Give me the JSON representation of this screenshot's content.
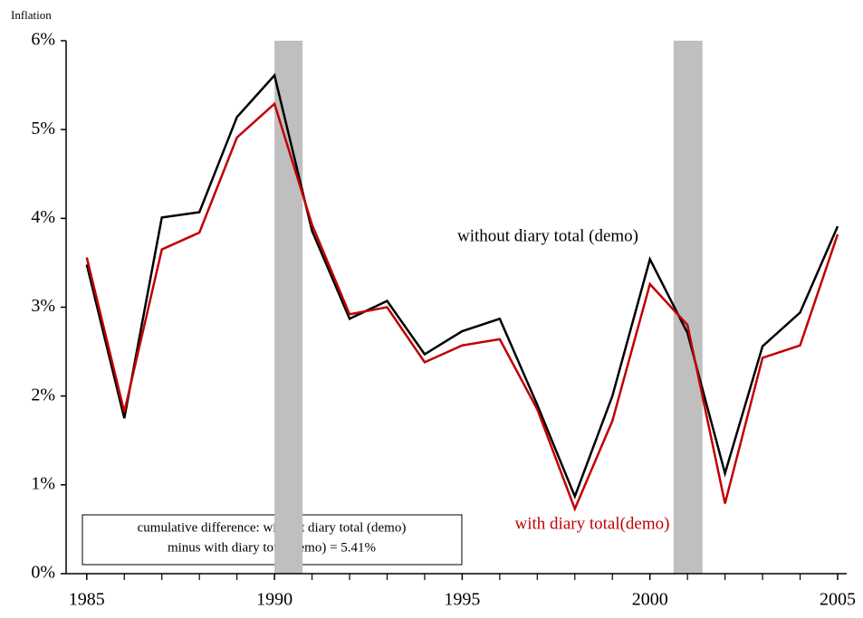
{
  "chart_data": {
    "type": "line",
    "y_axis_label": "Inflation",
    "x": [
      1985,
      1986,
      1987,
      1988,
      1989,
      1990,
      1991,
      1992,
      1993,
      1994,
      1995,
      1996,
      1997,
      1998,
      1999,
      2000,
      2001,
      2002,
      2003,
      2004,
      2005
    ],
    "series": [
      {
        "name": "without diary total (demo)",
        "color": "#000000",
        "values": [
          3.48,
          1.75,
          4.01,
          4.07,
          5.14,
          5.61,
          3.86,
          2.87,
          3.07,
          2.47,
          2.73,
          2.87,
          1.9,
          0.87,
          2.0,
          3.54,
          2.71,
          1.13,
          2.56,
          2.94,
          3.91
        ]
      },
      {
        "name": "with diary total(demo)",
        "color": "#c00000",
        "values": [
          3.56,
          1.82,
          3.65,
          3.84,
          4.91,
          5.29,
          3.93,
          2.92,
          3.0,
          2.38,
          2.57,
          2.64,
          1.85,
          0.73,
          1.72,
          3.26,
          2.8,
          0.79,
          2.43,
          2.57,
          3.82
        ]
      }
    ],
    "shaded_ranges": [
      [
        1990,
        1990.75
      ],
      [
        2000.63,
        2001.4
      ]
    ],
    "shade_color": "#bfbfbf",
    "annotation_lines": [
      "cumulative difference: without diary total (demo)",
      "minus with diary total(demo) = 5.41%"
    ],
    "xlim": [
      1984.45,
      2005
    ],
    "xticks": [
      1985,
      1990,
      1995,
      2000,
      2005
    ],
    "xminor_ticks": [
      1986,
      1987,
      1988,
      1989,
      1991,
      1992,
      1993,
      1994,
      1996,
      1997,
      1998,
      1999,
      2001,
      2002,
      2003,
      2004
    ],
    "ylim": [
      0,
      6
    ],
    "yticks": [
      {
        "value": 0,
        "label": "0%"
      },
      {
        "value": 1,
        "label": "1%"
      },
      {
        "value": 2,
        "label": "2%"
      },
      {
        "value": 3,
        "label": "3%"
      },
      {
        "value": 4,
        "label": "4%"
      },
      {
        "value": 5,
        "label": "5%"
      },
      {
        "value": 6,
        "label": "6%"
      }
    ]
  }
}
